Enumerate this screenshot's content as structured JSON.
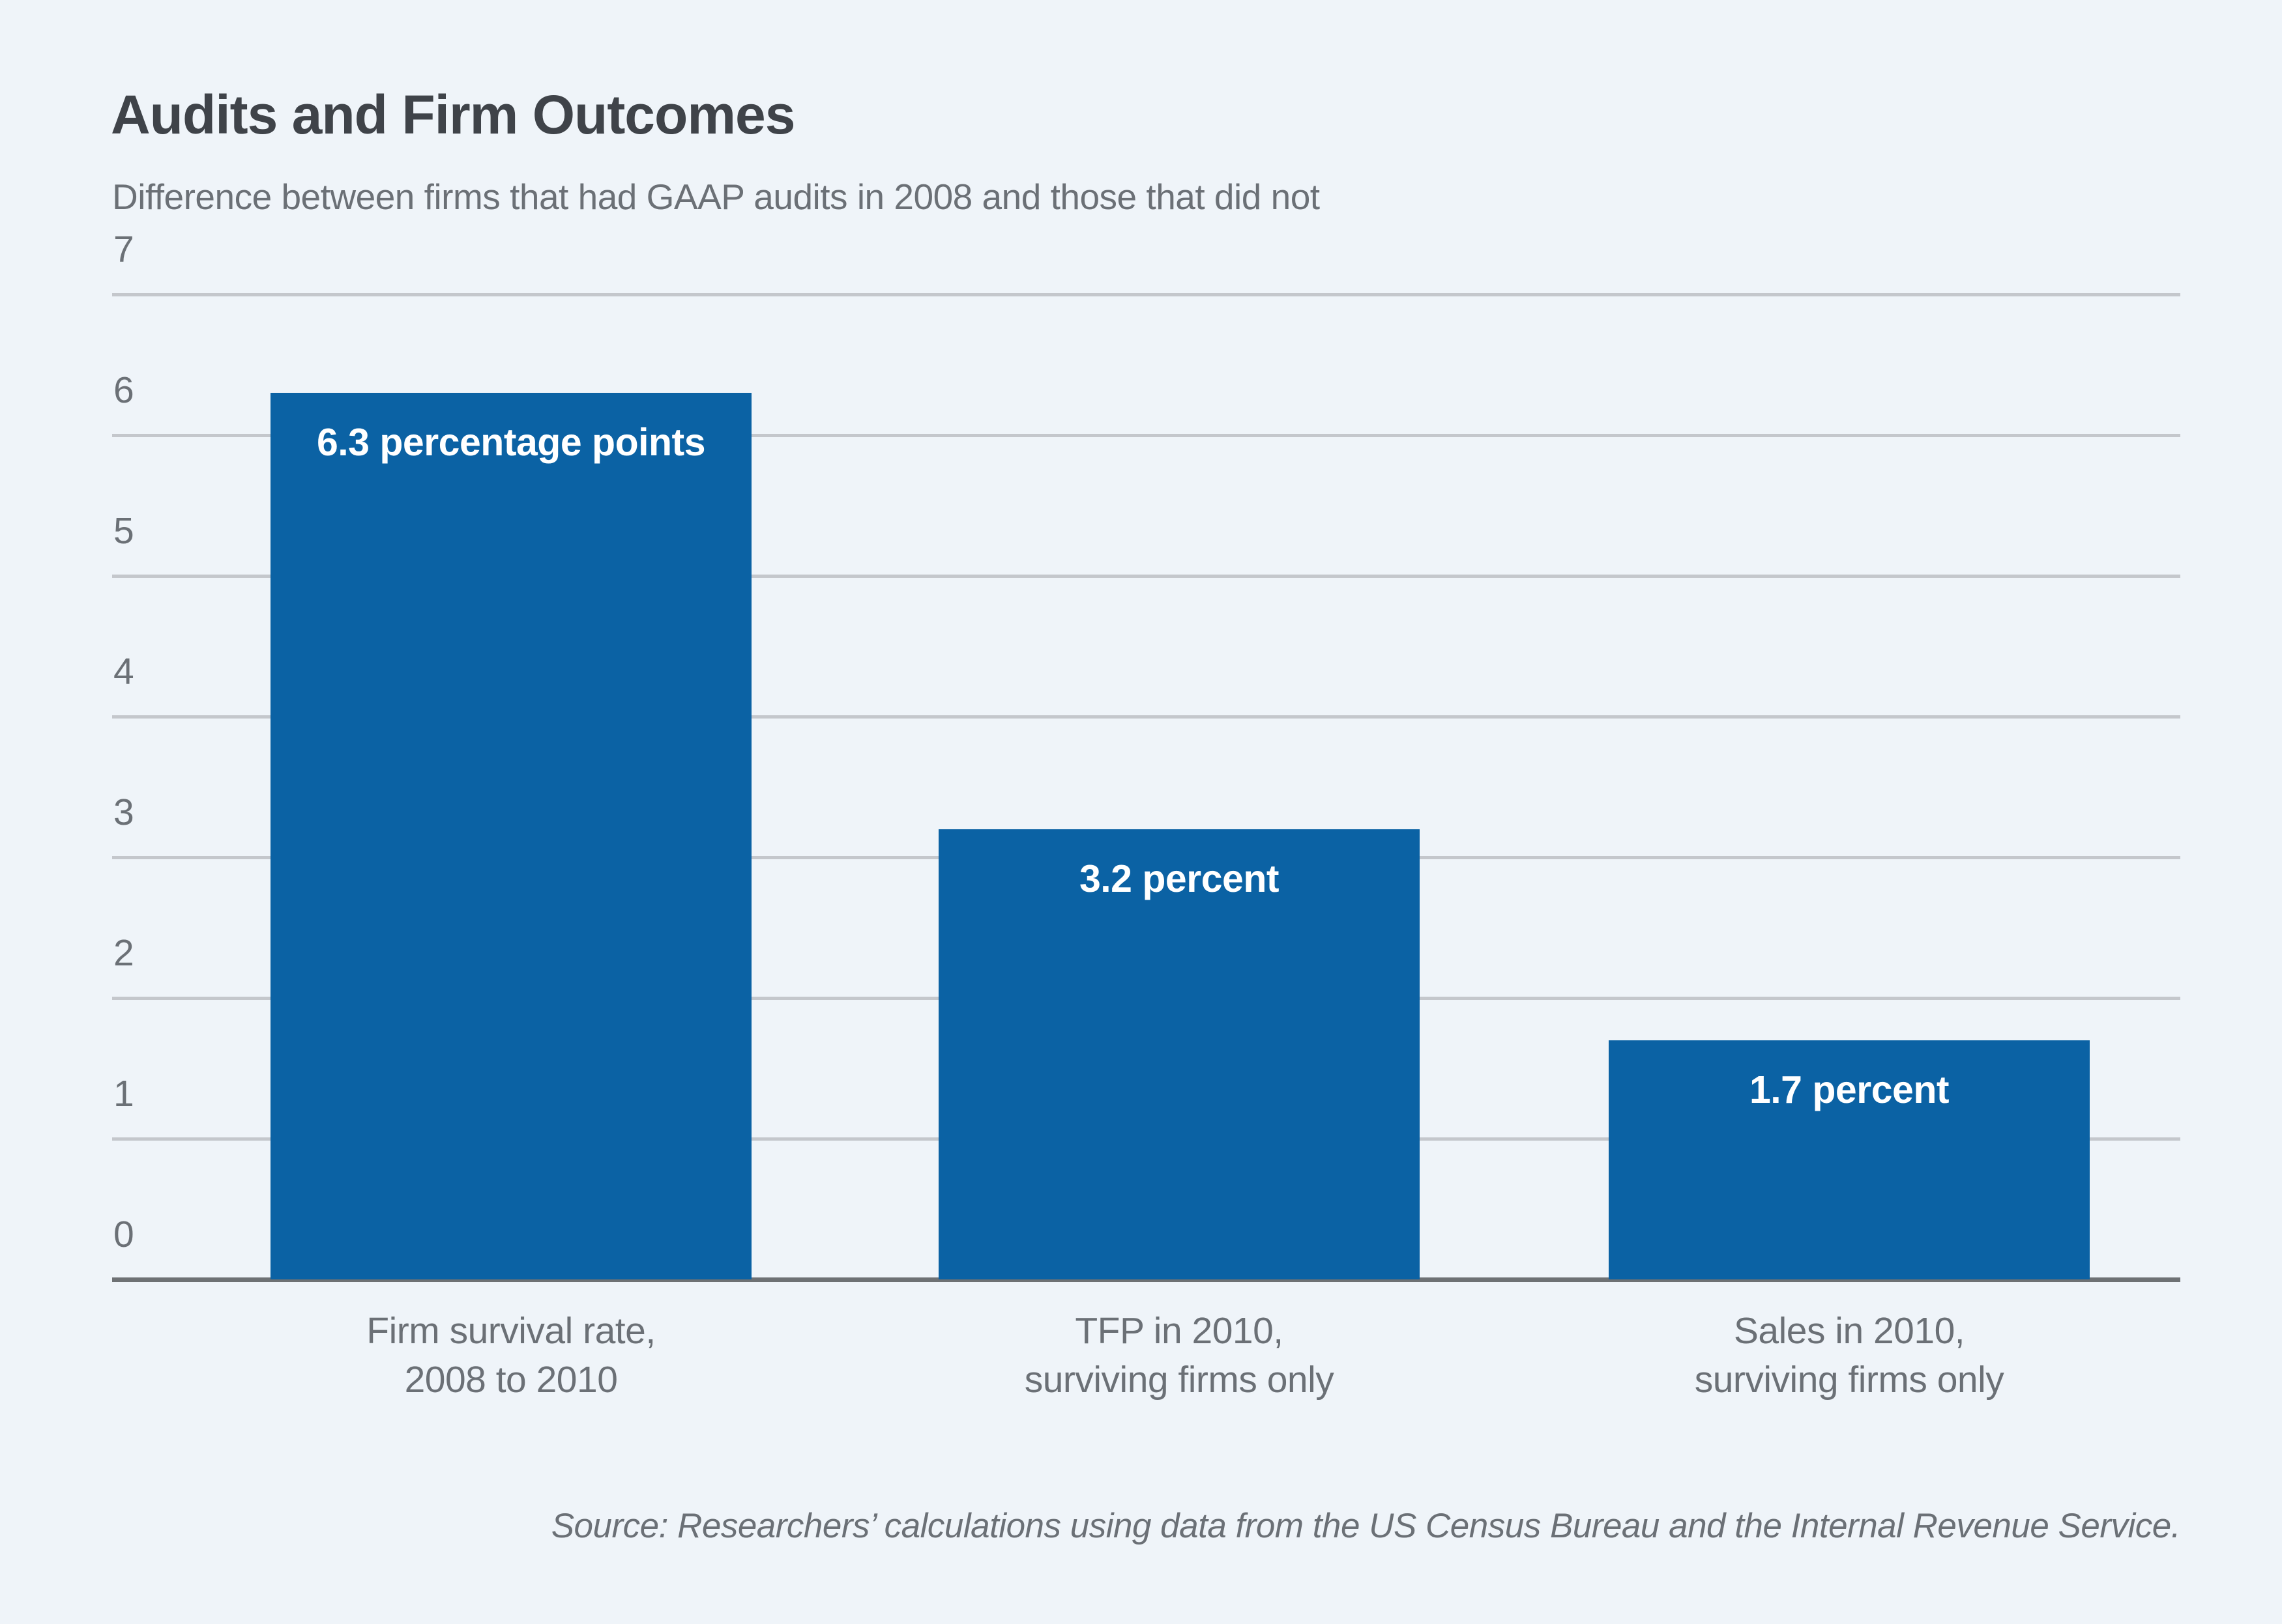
{
  "chart_data": {
    "type": "bar",
    "title": "Audits and Firm Outcomes",
    "subtitle": "Difference between firms that had GAAP audits in 2008 and those that did not",
    "categories": [
      [
        "Firm survival rate,",
        "2008 to 2010"
      ],
      [
        "TFP in 2010,",
        "surviving firms only"
      ],
      [
        "Sales in 2010,",
        "surviving firms only"
      ]
    ],
    "values": [
      6.3,
      3.2,
      1.7
    ],
    "bar_labels": [
      "6.3 percentage points",
      "3.2 percent",
      "1.7 percent"
    ],
    "ylabel": "",
    "xlabel": "",
    "ylim": [
      0,
      7
    ],
    "yticks": [
      0,
      1,
      2,
      3,
      4,
      5,
      6,
      7
    ],
    "grid": true,
    "legend_position": "none",
    "source": "Source: Researchers’ calculations using data from the US Census Bureau and the Internal Revenue Service.",
    "colors": {
      "bar": "#0B62A4",
      "background": "#EFF4F9",
      "gridline": "#C4C7CC",
      "axis_line": "#6E7174",
      "title_text": "#3F4349",
      "label_text": "#6B7076",
      "bar_label_text": "#FFFFFF"
    }
  }
}
